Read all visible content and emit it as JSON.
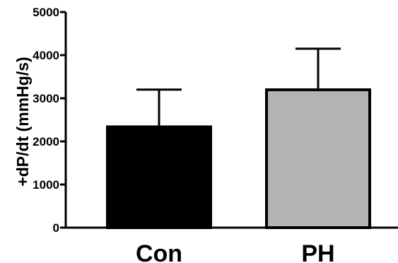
{
  "chart_data": {
    "type": "bar",
    "title": "",
    "xlabel": "",
    "ylabel": "+dP/dt (mmHg/s)",
    "ylim": [
      0,
      5000
    ],
    "yticks": [
      0,
      1000,
      2000,
      3000,
      4000,
      5000
    ],
    "grid": false,
    "categories": [
      "Con",
      "PH"
    ],
    "values": [
      2370,
      3230
    ],
    "error_upper": [
      830,
      920
    ],
    "colors": [
      "#000000",
      "#b3b3b3"
    ],
    "edge_color": "#000000"
  }
}
